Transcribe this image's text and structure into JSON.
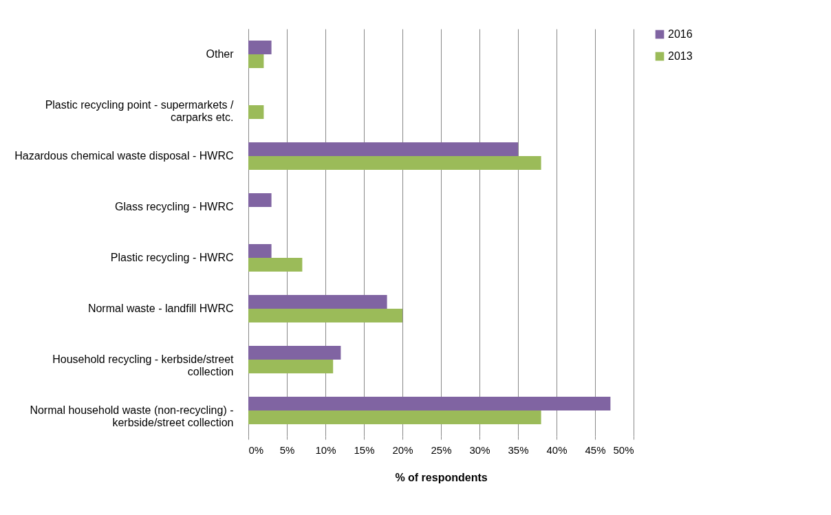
{
  "chart_data": {
    "type": "bar",
    "orientation": "horizontal",
    "xlabel": "% of respondents",
    "categories": [
      "Other",
      "Plastic recycling point - supermarkets / carparks etc.",
      "Hazardous chemical waste disposal - HWRC",
      "Glass recycling - HWRC",
      "Plastic recycling - HWRC",
      "Normal waste - landfill HWRC",
      "Household recycling - kerbside/street collection",
      "Normal household waste (non-recycling) - kerbside/street collection"
    ],
    "series": [
      {
        "name": "2016",
        "color": "#8064a2",
        "values": [
          3,
          null,
          35,
          3,
          3,
          18,
          12,
          47
        ]
      },
      {
        "name": "2013",
        "color": "#9bbb59",
        "values": [
          2,
          2,
          38,
          null,
          7,
          20,
          11,
          38
        ]
      }
    ],
    "xlim": [
      0,
      50
    ],
    "xticks": [
      {
        "value": 0,
        "label": "0%"
      },
      {
        "value": 5,
        "label": "5%"
      },
      {
        "value": 10,
        "label": "10%"
      },
      {
        "value": 15,
        "label": "15%"
      },
      {
        "value": 20,
        "label": "20%"
      },
      {
        "value": 25,
        "label": "25%"
      },
      {
        "value": 30,
        "label": "30%"
      },
      {
        "value": 35,
        "label": "35%"
      },
      {
        "value": 40,
        "label": "40%"
      },
      {
        "value": 45,
        "label": "45%"
      },
      {
        "value": 50,
        "label": "50%"
      }
    ],
    "grid": "x",
    "legend": "right"
  }
}
